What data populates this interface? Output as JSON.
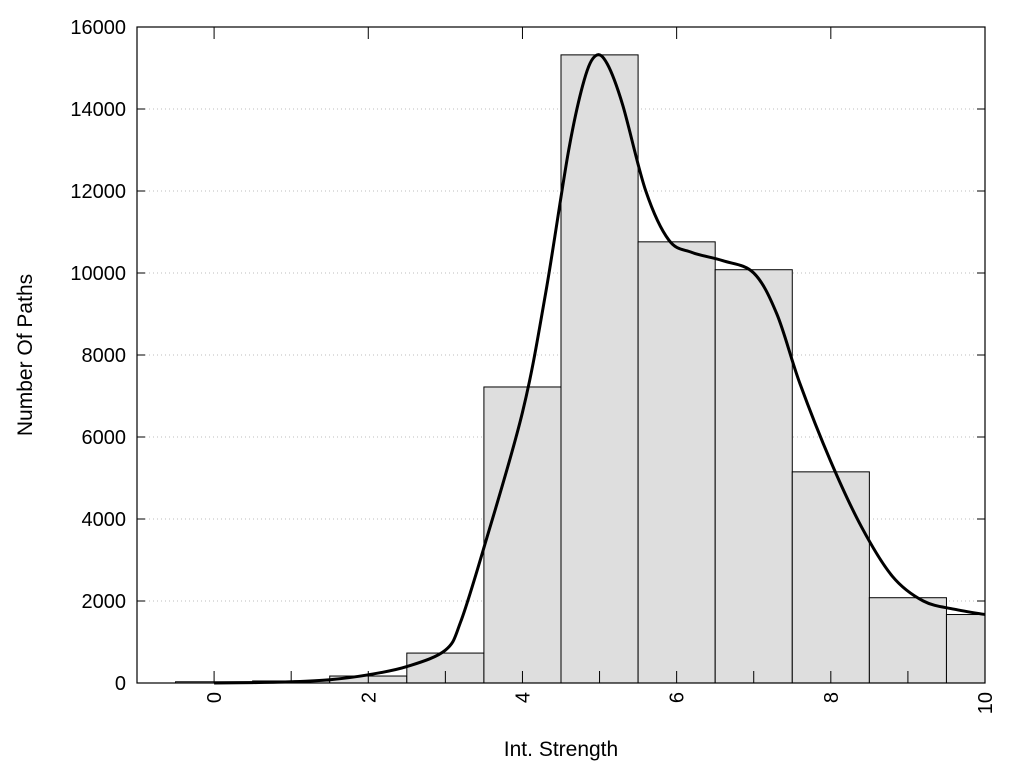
{
  "chart_data": {
    "type": "bar",
    "title": "",
    "xlabel": "Int. Strength",
    "ylabel": "Number Of Paths",
    "xlim": [
      -1,
      10
    ],
    "ylim": [
      0,
      16000
    ],
    "x_ticks": [
      0,
      2,
      4,
      6,
      8,
      10
    ],
    "x_tick_labels": [
      "0",
      "2",
      "4",
      "6",
      "8",
      "10"
    ],
    "y_ticks": [
      0,
      2000,
      4000,
      6000,
      8000,
      10000,
      12000,
      14000,
      16000
    ],
    "y_tick_labels": [
      "0",
      "2000",
      "4000",
      "6000",
      "8000",
      "10000",
      "12000",
      "14000",
      "16000"
    ],
    "grid": "horizontal-dotted",
    "bar_width": 1,
    "bar_color": "#dedede",
    "x": [
      0,
      1,
      2,
      3,
      4,
      5,
      6,
      7,
      8,
      9,
      10
    ],
    "values": [
      30,
      50,
      170,
      730,
      7220,
      15320,
      10760,
      10080,
      5150,
      2080,
      1670
    ],
    "curve": {
      "x": [
        0,
        0.5,
        1,
        1.5,
        2,
        2.5,
        3,
        3.2,
        3.5,
        4,
        4.3,
        4.6,
        4.8,
        4.95,
        5.1,
        5.3,
        5.6,
        5.9,
        6.2,
        6.6,
        7,
        7.3,
        7.6,
        8,
        8.4,
        8.8,
        9.2,
        9.6,
        10
      ],
      "y": [
        0,
        10,
        30,
        80,
        200,
        400,
        800,
        1500,
        3300,
        6600,
        9500,
        13000,
        14700,
        15300,
        15100,
        14100,
        12000,
        10800,
        10500,
        10300,
        10000,
        9000,
        7300,
        5400,
        3800,
        2600,
        2000,
        1800,
        1670
      ]
    }
  }
}
